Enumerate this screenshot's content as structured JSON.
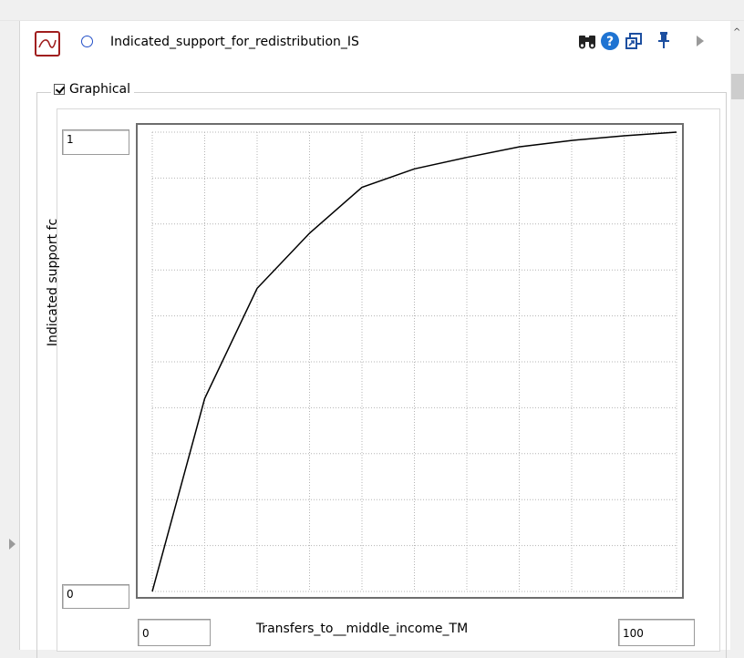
{
  "variable": {
    "name": "Indicated_support_for_redistribution_IS"
  },
  "toolbar": {
    "icons": [
      "binoculars-icon",
      "help-icon",
      "new-window-icon",
      "pin-icon",
      "expand-icon"
    ]
  },
  "graphical": {
    "label": "Graphical",
    "checked": true
  },
  "graph": {
    "y_max": "1",
    "y_min": "0",
    "x_min": "0",
    "x_max": "100",
    "y_label": "Indicated support fc",
    "x_label": "Transfers_to__middle_income_TM"
  },
  "chart_data": {
    "type": "line",
    "x": [
      0,
      10,
      20,
      30,
      40,
      50,
      60,
      70,
      80,
      90,
      100
    ],
    "y": [
      0,
      0.42,
      0.66,
      0.78,
      0.88,
      0.92,
      0.945,
      0.968,
      0.982,
      0.992,
      1.0
    ],
    "xlim": [
      0,
      100
    ],
    "ylim": [
      0,
      1
    ],
    "grid": true,
    "xlabel": "Transfers_to__middle_income_TM",
    "ylabel": "Indicated support fc"
  },
  "colors": {
    "curve": "#000000",
    "grid": "#b4b4b4",
    "model_icon": "#a01e1e",
    "help_icon": "#1e73d2"
  }
}
